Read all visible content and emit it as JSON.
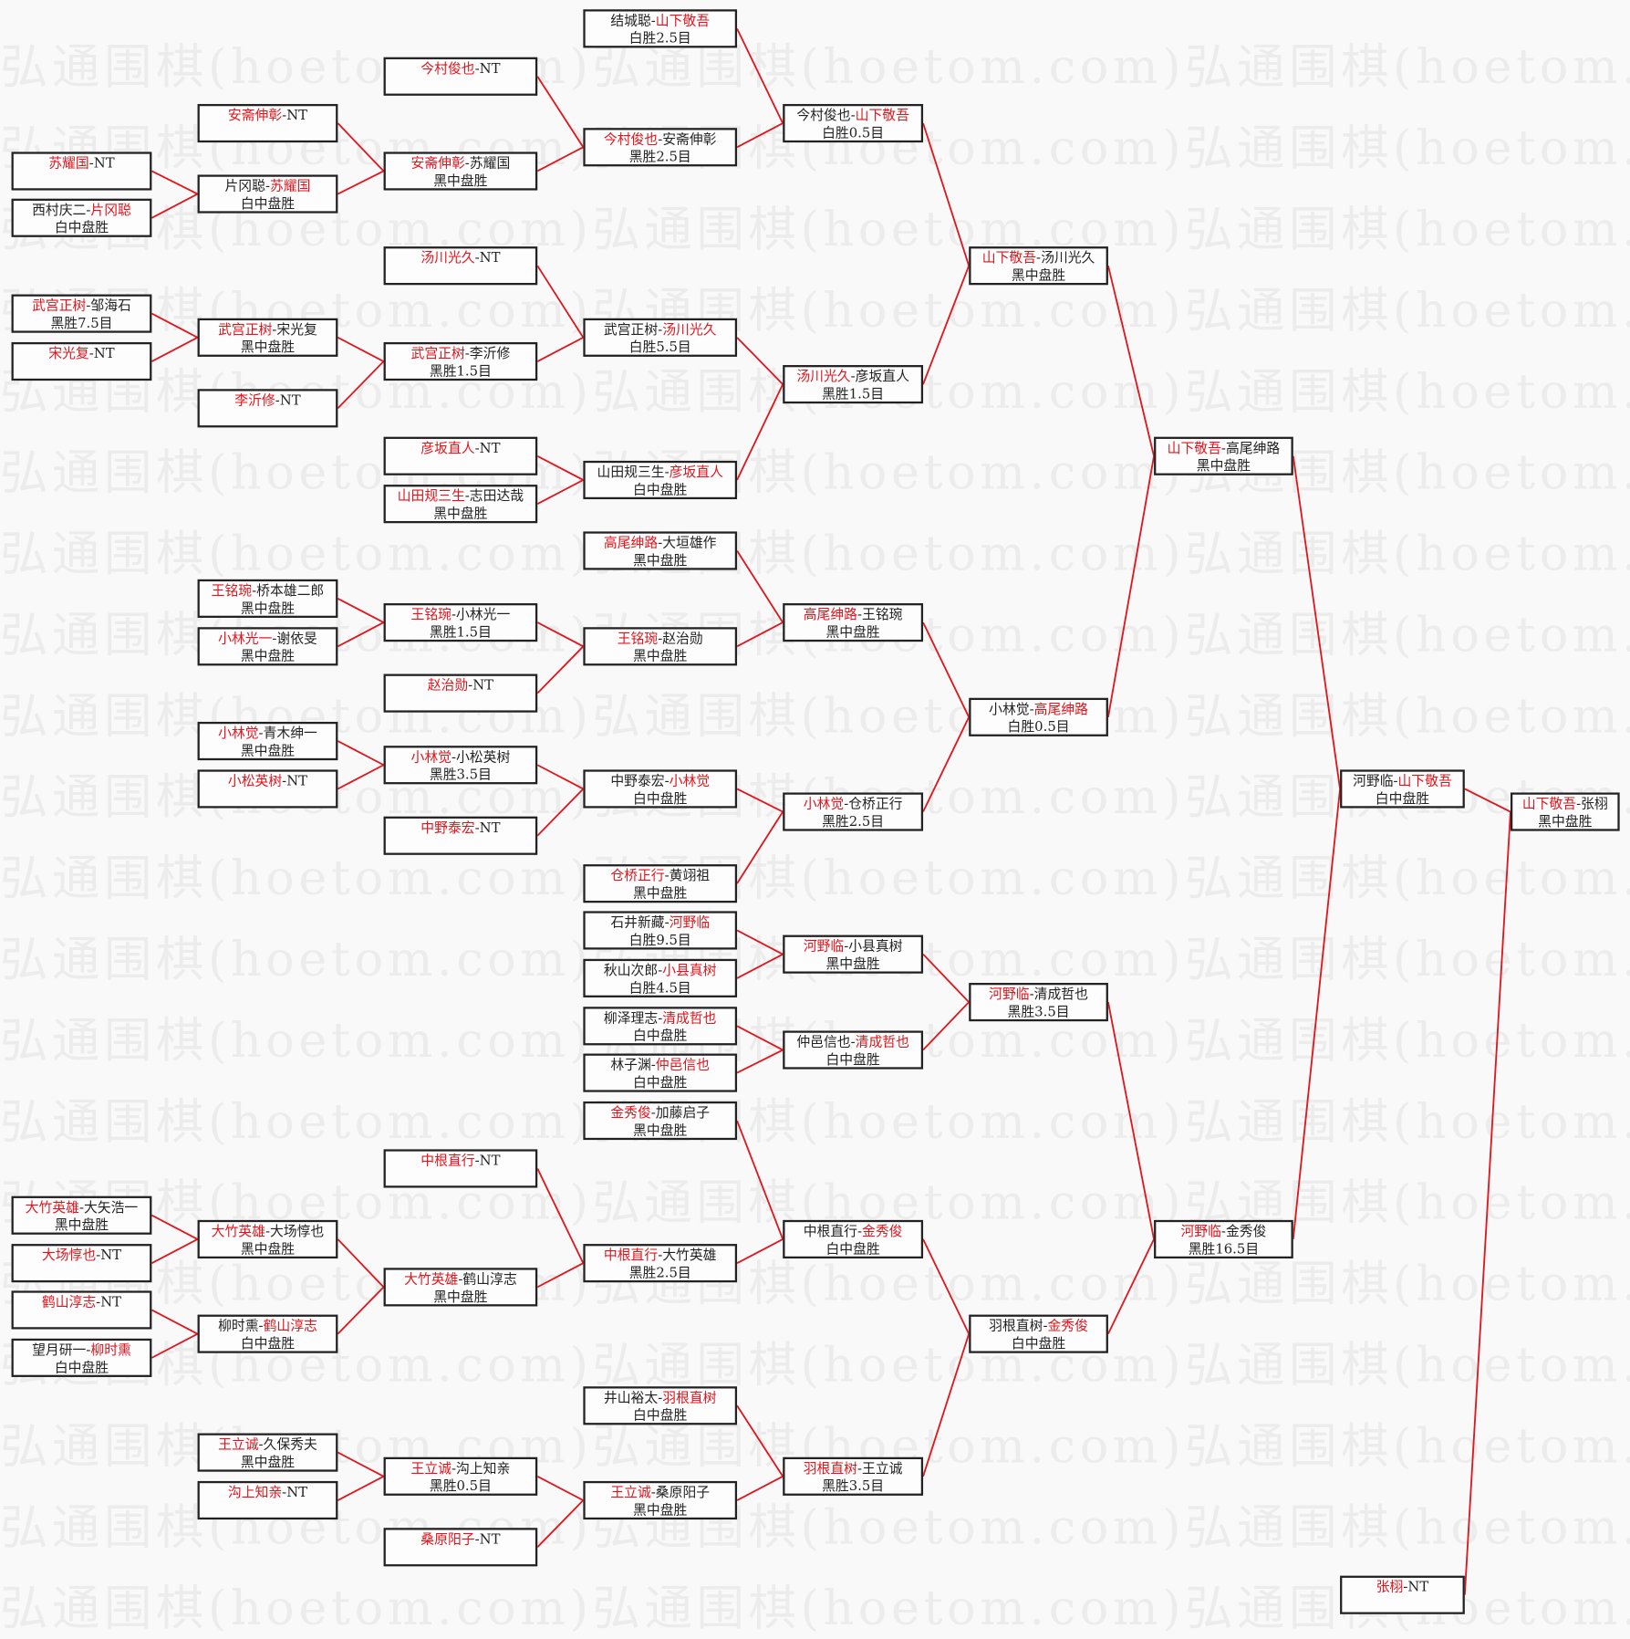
{
  "watermark": "弘通围棋(hoetom.com)",
  "colors": {
    "winner": "#e0161e",
    "line": "#e0161e",
    "border": "#222222"
  },
  "matches": [
    {
      "p1": "结城聪",
      "p2": "山下敬吾",
      "winner": 2,
      "result": "白胜2.5目"
    },
    {
      "p1": "今村俊也",
      "p2": "NT",
      "winner": 1,
      "result": ""
    },
    {
      "p1": "安斋伸彰",
      "p2": "NT",
      "winner": 1,
      "result": ""
    },
    {
      "p1": "今村俊也",
      "p2": "山下敬吾",
      "winner": 2,
      "result": "白胜0.5目"
    },
    {
      "p1": "今村俊也",
      "p2": "安斋伸彰",
      "winner": 1,
      "result": "黑胜2.5目"
    },
    {
      "p1": "苏耀国",
      "p2": "NT",
      "winner": 1,
      "result": ""
    },
    {
      "p1": "安斋伸彰",
      "p2": "苏耀国",
      "winner": 1,
      "result": "黑中盘胜"
    },
    {
      "p1": "片冈聪",
      "p2": "苏耀国",
      "winner": 2,
      "result": "白中盘胜"
    },
    {
      "p1": "西村庆二",
      "p2": "片冈聪",
      "winner": 2,
      "result": "白中盘胜"
    },
    {
      "p1": "汤川光久",
      "p2": "NT",
      "winner": 1,
      "result": ""
    },
    {
      "p1": "山下敬吾",
      "p2": "汤川光久",
      "winner": 1,
      "result": "黑中盘胜"
    },
    {
      "p1": "武宫正树",
      "p2": "邹海石",
      "winner": 1,
      "result": "黑胜7.5目"
    },
    {
      "p1": "武宫正树",
      "p2": "宋光复",
      "winner": 1,
      "result": "黑中盘胜"
    },
    {
      "p1": "武宫正树",
      "p2": "汤川光久",
      "winner": 2,
      "result": "白胜5.5目"
    },
    {
      "p1": "宋光复",
      "p2": "NT",
      "winner": 1,
      "result": ""
    },
    {
      "p1": "武宫正树",
      "p2": "李沂修",
      "winner": 1,
      "result": "黑胜1.5目"
    },
    {
      "p1": "汤川光久",
      "p2": "彦坂直人",
      "winner": 1,
      "result": "黑胜1.5目"
    },
    {
      "p1": "李沂修",
      "p2": "NT",
      "winner": 1,
      "result": ""
    },
    {
      "p1": "山下敬吾",
      "p2": "高尾绅路",
      "winner": 1,
      "result": "黑中盘胜"
    },
    {
      "p1": "彦坂直人",
      "p2": "NT",
      "winner": 1,
      "result": ""
    },
    {
      "p1": "山田规三生",
      "p2": "彦坂直人",
      "winner": 2,
      "result": "白中盘胜"
    },
    {
      "p1": "山田规三生",
      "p2": "志田达哉",
      "winner": 1,
      "result": "黑中盘胜"
    },
    {
      "p1": "高尾绅路",
      "p2": "大垣雄作",
      "winner": 1,
      "result": "黑中盘胜"
    },
    {
      "p1": "王铭琬",
      "p2": "桥本雄二郎",
      "winner": 1,
      "result": "黑中盘胜"
    },
    {
      "p1": "王铭琬",
      "p2": "小林光一",
      "winner": 1,
      "result": "黑胜1.5目"
    },
    {
      "p1": "高尾绅路",
      "p2": "王铭琬",
      "winner": 1,
      "result": "黑中盘胜"
    },
    {
      "p1": "小林光一",
      "p2": "谢依旻",
      "winner": 1,
      "result": "黑中盘胜"
    },
    {
      "p1": "王铭琬",
      "p2": "赵治勋",
      "winner": 1,
      "result": "黑中盘胜"
    },
    {
      "p1": "赵治勋",
      "p2": "NT",
      "winner": 1,
      "result": ""
    },
    {
      "p1": "小林觉",
      "p2": "高尾绅路",
      "winner": 2,
      "result": "白胜0.5目"
    },
    {
      "p1": "小林觉",
      "p2": "青木绅一",
      "winner": 1,
      "result": "黑中盘胜"
    },
    {
      "p1": "小林觉",
      "p2": "小松英树",
      "winner": 1,
      "result": "黑胜3.5目"
    },
    {
      "p1": "小松英树",
      "p2": "NT",
      "winner": 1,
      "result": ""
    },
    {
      "p1": "中野泰宏",
      "p2": "小林觉",
      "winner": 2,
      "result": "白中盘胜"
    },
    {
      "p1": "河野临",
      "p2": "山下敬吾",
      "winner": 2,
      "result": "白中盘胜"
    },
    {
      "p1": "小林觉",
      "p2": "仓桥正行",
      "winner": 1,
      "result": "黑胜2.5目"
    },
    {
      "p1": "山下敬吾",
      "p2": "张栩",
      "winner": 1,
      "result": "黑中盘胜"
    },
    {
      "p1": "中野泰宏",
      "p2": "NT",
      "winner": 1,
      "result": ""
    },
    {
      "p1": "仓桥正行",
      "p2": "黄翊祖",
      "winner": 1,
      "result": "黑中盘胜"
    },
    {
      "p1": "石井新藏",
      "p2": "河野临",
      "winner": 2,
      "result": "白胜9.5目"
    },
    {
      "p1": "河野临",
      "p2": "小县真树",
      "winner": 1,
      "result": "黑中盘胜"
    },
    {
      "p1": "秋山次郎",
      "p2": "小县真树",
      "winner": 2,
      "result": "白胜4.5目"
    },
    {
      "p1": "河野临",
      "p2": "清成哲也",
      "winner": 1,
      "result": "黑胜3.5目"
    },
    {
      "p1": "柳泽理志",
      "p2": "清成哲也",
      "winner": 2,
      "result": "白中盘胜"
    },
    {
      "p1": "仲邑信也",
      "p2": "清成哲也",
      "winner": 2,
      "result": "白中盘胜"
    },
    {
      "p1": "林子渊",
      "p2": "仲邑信也",
      "winner": 2,
      "result": "白中盘胜"
    },
    {
      "p1": "金秀俊",
      "p2": "加藤启子",
      "winner": 1,
      "result": "黑中盘胜"
    },
    {
      "p1": "中根直行",
      "p2": "NT",
      "winner": 1,
      "result": ""
    },
    {
      "p1": "大竹英雄",
      "p2": "大矢浩一",
      "winner": 1,
      "result": "黑中盘胜"
    },
    {
      "p1": "大竹英雄",
      "p2": "大场惇也",
      "winner": 1,
      "result": "黑中盘胜"
    },
    {
      "p1": "中根直行",
      "p2": "金秀俊",
      "winner": 2,
      "result": "白中盘胜"
    },
    {
      "p1": "河野临",
      "p2": "金秀俊",
      "winner": 1,
      "result": "黑胜16.5目"
    },
    {
      "p1": "大场惇也",
      "p2": "NT",
      "winner": 1,
      "result": ""
    },
    {
      "p1": "中根直行",
      "p2": "大竹英雄",
      "winner": 1,
      "result": "黑胜2.5目"
    },
    {
      "p1": "大竹英雄",
      "p2": "鹤山淳志",
      "winner": 1,
      "result": "黑中盘胜"
    },
    {
      "p1": "鹤山淳志",
      "p2": "NT",
      "winner": 1,
      "result": ""
    },
    {
      "p1": "柳时熏",
      "p2": "鹤山淳志",
      "winner": 2,
      "result": "白中盘胜"
    },
    {
      "p1": "羽根直树",
      "p2": "金秀俊",
      "winner": 2,
      "result": "白中盘胜"
    },
    {
      "p1": "望月研一",
      "p2": "柳时熏",
      "winner": 2,
      "result": "白中盘胜"
    },
    {
      "p1": "井山裕太",
      "p2": "羽根直树",
      "winner": 2,
      "result": "白中盘胜"
    },
    {
      "p1": "王立诚",
      "p2": "久保秀夫",
      "winner": 1,
      "result": "黑中盘胜"
    },
    {
      "p1": "王立诚",
      "p2": "沟上知亲",
      "winner": 1,
      "result": "黑胜0.5目"
    },
    {
      "p1": "羽根直树",
      "p2": "王立诚",
      "winner": 1,
      "result": "黑胜3.5目"
    },
    {
      "p1": "沟上知亲",
      "p2": "NT",
      "winner": 1,
      "result": ""
    },
    {
      "p1": "王立诚",
      "p2": "桑原阳子",
      "winner": 1,
      "result": "黑中盘胜"
    },
    {
      "p1": "桑原阳子",
      "p2": "NT",
      "winner": 1,
      "result": ""
    },
    {
      "p1": "张栩",
      "p2": "NT",
      "winner": 1,
      "result": ""
    }
  ]
}
